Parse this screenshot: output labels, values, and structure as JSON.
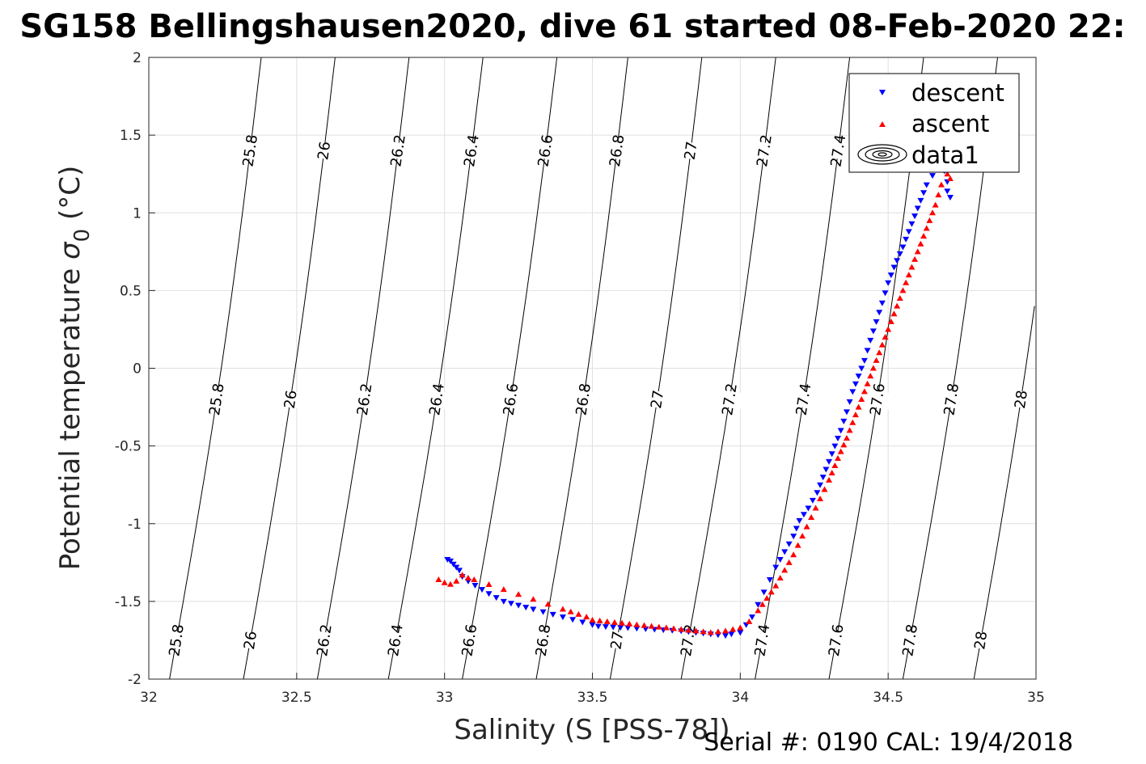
{
  "title": "SG158 Bellingshausen2020, dive 61 started 08-Feb-2020 22:",
  "xlabel": "Salinity (S [PSS-78])",
  "ylabel_main": "Potential temperature ",
  "ylabel_sigma": "σ",
  "ylabel_sub": "0",
  "ylabel_unit": " (°C)",
  "serial_text": "Serial #: 0190  CAL: 19/4/2018",
  "colors": {
    "descent": "#0000ff",
    "ascent": "#ff0000",
    "contour": "#000000",
    "grid": "#e0e0e0"
  },
  "chart_data": {
    "type": "scatter",
    "xlim": [
      32,
      35
    ],
    "ylim": [
      -2,
      2
    ],
    "xticks": [
      32,
      32.5,
      33,
      33.5,
      34,
      34.5,
      35
    ],
    "xtick_labels": [
      "32",
      "32.5",
      "33",
      "33.5",
      "34",
      "34.5",
      "35"
    ],
    "yticks": [
      2,
      1.5,
      1,
      0.5,
      0,
      -0.5,
      -1,
      -1.5,
      -2
    ],
    "ytick_labels": [
      "2",
      "1.5",
      "1",
      "0.5",
      "0",
      "-0.5",
      "-1",
      "-1.5",
      "-2"
    ],
    "grid": true,
    "legend": {
      "location": "top-right",
      "entries": [
        "descent",
        "ascent",
        "data1"
      ]
    },
    "contours": {
      "levels": [
        25.8,
        26,
        26.2,
        26.4,
        26.6,
        26.8,
        27,
        27.2,
        27.4,
        27.6,
        27.8,
        28
      ],
      "level_labels": [
        "25.8",
        "26",
        "26.2",
        "26.4",
        "26.6",
        "26.8",
        "27",
        "27.2",
        "27.4",
        "27.6",
        "27.8",
        "28"
      ],
      "points": [
        {
          "level": 25.8,
          "bottom": [
            32.07,
            -2
          ],
          "top": [
            32.38,
            2
          ]
        },
        {
          "level": 26,
          "bottom": [
            32.32,
            -2
          ],
          "top": [
            32.63,
            2
          ]
        },
        {
          "level": 26.2,
          "bottom": [
            32.57,
            -2
          ],
          "top": [
            32.88,
            2
          ]
        },
        {
          "level": 26.4,
          "bottom": [
            32.81,
            -2
          ],
          "top": [
            33.13,
            2
          ]
        },
        {
          "level": 26.6,
          "bottom": [
            33.06,
            -2
          ],
          "top": [
            33.38,
            2
          ]
        },
        {
          "level": 26.8,
          "bottom": [
            33.31,
            -2
          ],
          "top": [
            33.62,
            2
          ]
        },
        {
          "level": 27,
          "bottom": [
            33.56,
            -2
          ],
          "top": [
            33.87,
            2
          ]
        },
        {
          "level": 27.2,
          "bottom": [
            33.8,
            -2
          ],
          "top": [
            34.12,
            2
          ]
        },
        {
          "level": 27.4,
          "bottom": [
            34.05,
            -2
          ],
          "top": [
            34.37,
            2
          ]
        },
        {
          "level": 27.6,
          "bottom": [
            34.3,
            -2
          ],
          "top": [
            34.62,
            2
          ]
        },
        {
          "level": 27.8,
          "bottom": [
            34.55,
            -2
          ],
          "top": [
            34.87,
            2
          ]
        },
        {
          "level": 28,
          "bottom": [
            34.79,
            -2
          ],
          "top": [
            35.1,
            2
          ]
        }
      ]
    },
    "series": [
      {
        "name": "descent",
        "marker": "triangle-down",
        "x": [
          33.01,
          33.02,
          33.03,
          33.04,
          33.05,
          33.06,
          33.08,
          33.15,
          33.2,
          33.3,
          33.5,
          33.52,
          33.62,
          33.8,
          33.85,
          33.9,
          33.95,
          33.97,
          34.0,
          34.02,
          34.04,
          34.06,
          34.08,
          34.1,
          34.12,
          34.15,
          34.18,
          34.2,
          34.23,
          34.26,
          34.28,
          34.3,
          34.32,
          34.34,
          34.36,
          34.38,
          34.4,
          34.42,
          34.44,
          34.46,
          34.48,
          34.5,
          34.52,
          34.55,
          34.57,
          34.59,
          34.61,
          34.63,
          34.65,
          34.67,
          34.69,
          34.7,
          34.7,
          34.71
        ],
        "y": [
          -1.23,
          -1.24,
          -1.26,
          -1.28,
          -1.3,
          -1.34,
          -1.37,
          -1.45,
          -1.5,
          -1.55,
          -1.65,
          -1.66,
          -1.67,
          -1.69,
          -1.7,
          -1.71,
          -1.72,
          -1.71,
          -1.7,
          -1.65,
          -1.6,
          -1.52,
          -1.44,
          -1.36,
          -1.28,
          -1.18,
          -1.08,
          -0.98,
          -0.9,
          -0.8,
          -0.7,
          -0.6,
          -0.5,
          -0.4,
          -0.28,
          -0.15,
          -0.05,
          0.05,
          0.18,
          0.3,
          0.42,
          0.55,
          0.65,
          0.78,
          0.88,
          0.98,
          1.08,
          1.18,
          1.24,
          1.28,
          1.27,
          1.2,
          1.14,
          1.1
        ]
      },
      {
        "name": "ascent",
        "marker": "triangle-up",
        "x": [
          32.98,
          33.0,
          33.02,
          33.04,
          33.06,
          33.08,
          33.1,
          33.4,
          33.48,
          33.5,
          33.6,
          33.65,
          33.7,
          33.75,
          33.8,
          33.85,
          33.9,
          33.95,
          34.0,
          34.03,
          34.06,
          34.09,
          34.12,
          34.15,
          34.18,
          34.21,
          34.24,
          34.27,
          34.3,
          34.33,
          34.36,
          34.39,
          34.42,
          34.45,
          34.48,
          34.51,
          34.54,
          34.57,
          34.6,
          34.63,
          34.66,
          34.68,
          34.7,
          34.71
        ],
        "y": [
          -1.36,
          -1.38,
          -1.39,
          -1.37,
          -1.33,
          -1.35,
          -1.36,
          -1.55,
          -1.6,
          -1.62,
          -1.64,
          -1.65,
          -1.66,
          -1.67,
          -1.68,
          -1.69,
          -1.7,
          -1.69,
          -1.67,
          -1.63,
          -1.56,
          -1.48,
          -1.4,
          -1.3,
          -1.2,
          -1.08,
          -0.96,
          -0.84,
          -0.72,
          -0.58,
          -0.45,
          -0.3,
          -0.15,
          0.0,
          0.15,
          0.3,
          0.45,
          0.6,
          0.75,
          0.9,
          1.05,
          1.18,
          1.25,
          1.22
        ]
      },
      {
        "name": "data1",
        "marker": "contour"
      }
    ]
  }
}
